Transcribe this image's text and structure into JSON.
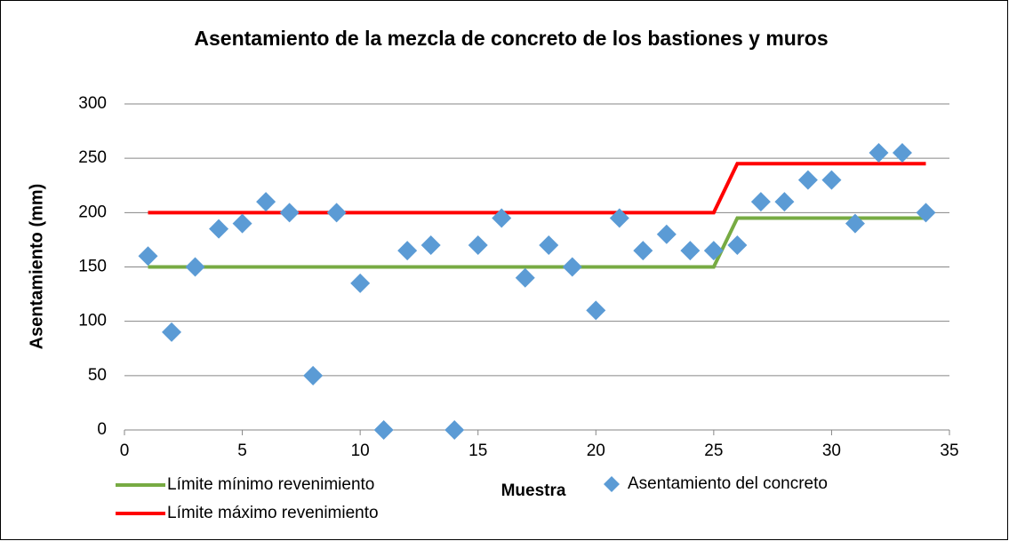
{
  "chart_data": {
    "type": "line",
    "title": "Asentamiento de la mezcla de concreto de los bastiones y muros",
    "x_label": "Muestra",
    "y_label": "Asentamiento (mm)",
    "x": [
      1,
      2,
      3,
      4,
      5,
      6,
      7,
      8,
      9,
      10,
      11,
      12,
      13,
      14,
      15,
      16,
      17,
      18,
      19,
      20,
      21,
      22,
      23,
      24,
      25,
      26,
      27,
      28,
      29,
      30,
      31,
      32,
      33,
      34
    ],
    "series": [
      {
        "name": "Límite mínimo revenimiento",
        "type": "line",
        "color": "#77ab43",
        "values": [
          150,
          150,
          150,
          150,
          150,
          150,
          150,
          150,
          150,
          150,
          150,
          150,
          150,
          150,
          150,
          150,
          150,
          150,
          150,
          150,
          150,
          150,
          150,
          150,
          150,
          195,
          195,
          195,
          195,
          195,
          195,
          195,
          195,
          195
        ]
      },
      {
        "name": "Límite máximo revenimiento",
        "type": "line",
        "color": "#ff0000",
        "values": [
          200,
          200,
          200,
          200,
          200,
          200,
          200,
          200,
          200,
          200,
          200,
          200,
          200,
          200,
          200,
          200,
          200,
          200,
          200,
          200,
          200,
          200,
          200,
          200,
          200,
          245,
          245,
          245,
          245,
          245,
          245,
          245,
          245,
          245
        ]
      },
      {
        "name": "Asentamiento del concreto",
        "type": "scatter",
        "color": "#5b9bd5",
        "values": [
          160,
          90,
          150,
          185,
          190,
          210,
          200,
          50,
          200,
          135,
          0,
          165,
          170,
          0,
          170,
          195,
          140,
          170,
          150,
          110,
          195,
          165,
          180,
          165,
          165,
          170,
          210,
          210,
          230,
          230,
          190,
          255,
          255,
          200
        ]
      }
    ],
    "xlim": [
      0,
      35
    ],
    "xticks": [
      0,
      5,
      10,
      15,
      20,
      25,
      30,
      35
    ],
    "ylim": [
      0,
      300
    ],
    "yticks": [
      0,
      50,
      100,
      150,
      200,
      250,
      300
    ],
    "grid": true,
    "legend": "bottom"
  }
}
